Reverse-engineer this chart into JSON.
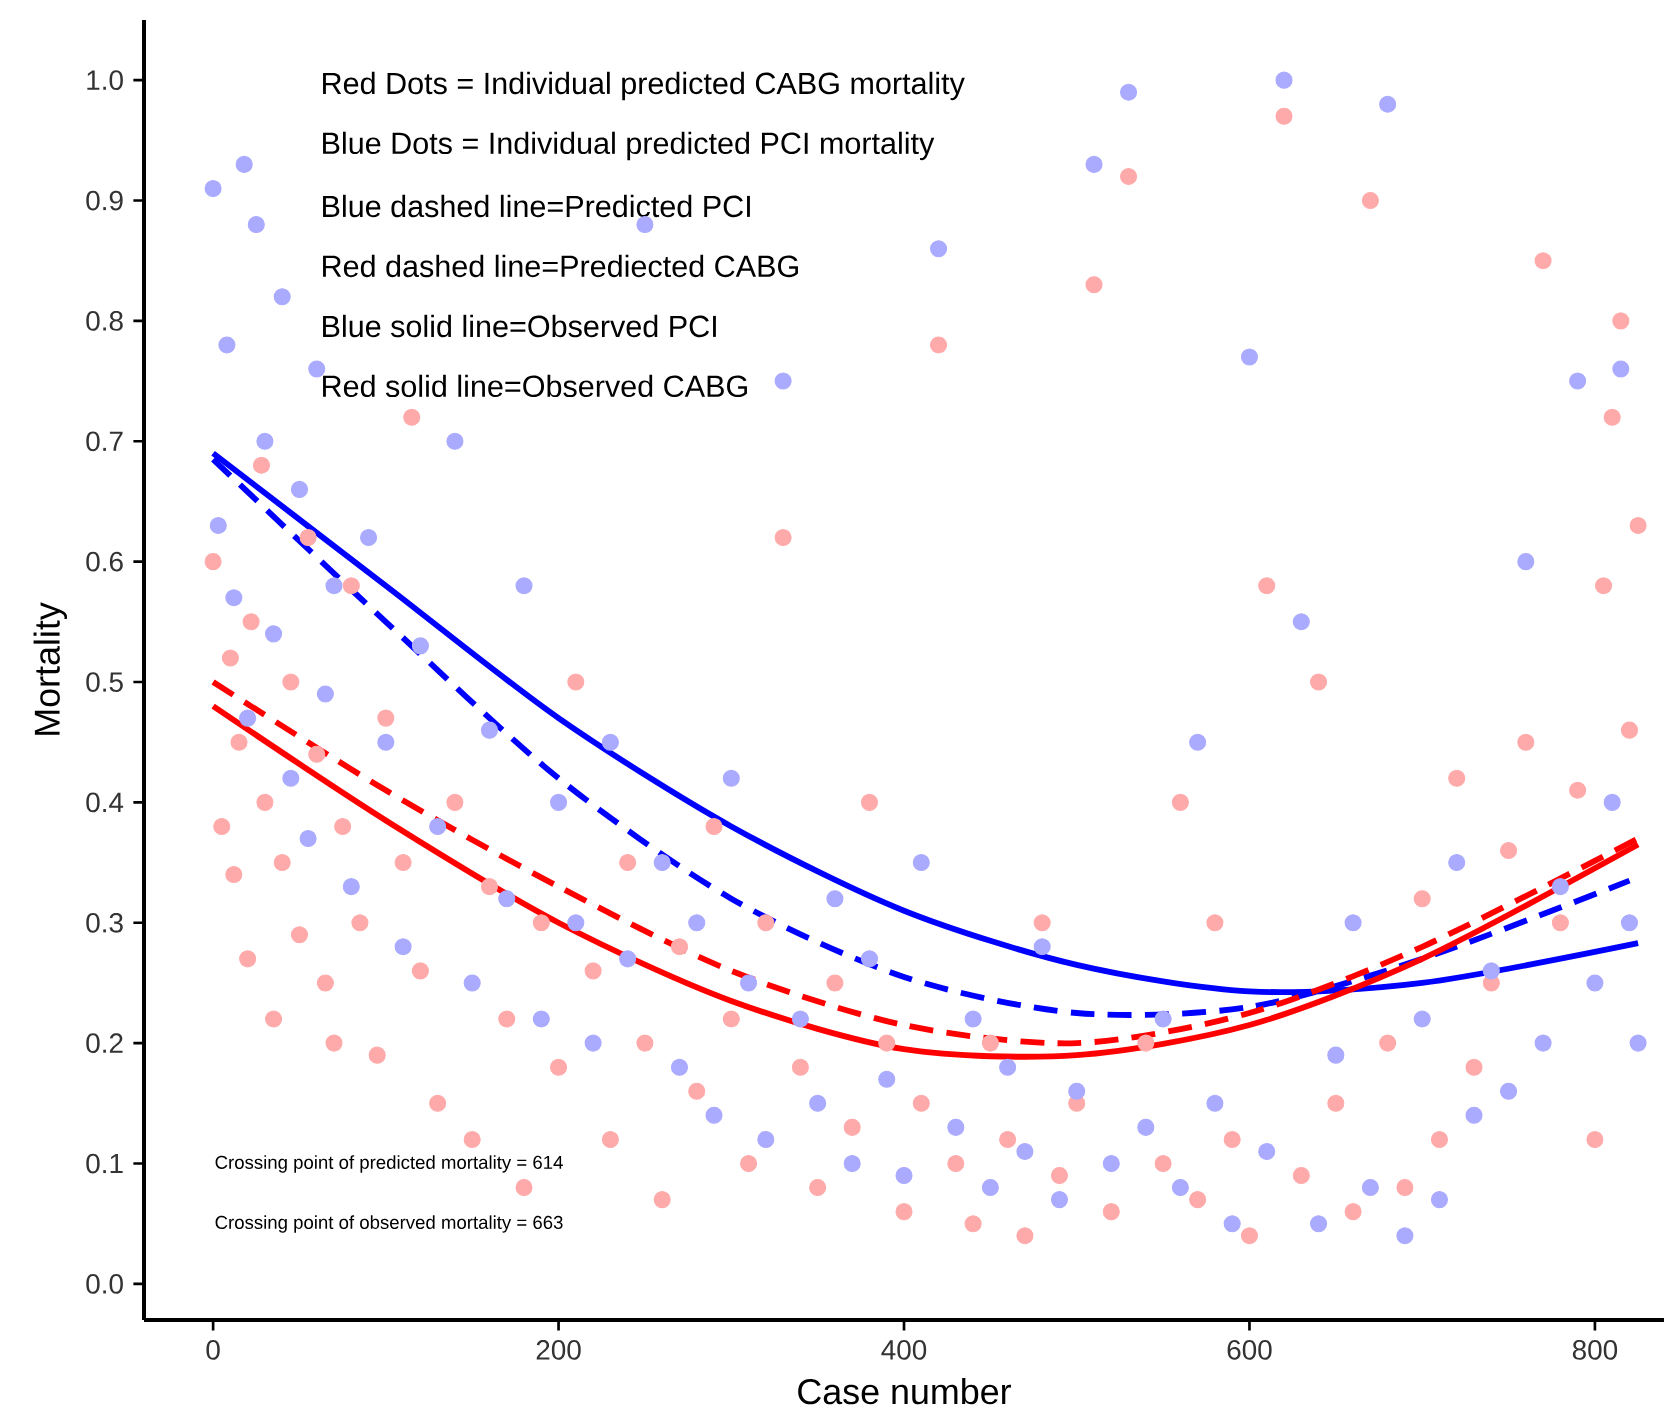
{
  "chart_data": {
    "type": "scatter",
    "xlabel": "Case number",
    "ylabel": "Mortality",
    "xlim": [
      -40,
      840
    ],
    "ylim": [
      -0.03,
      1.05
    ],
    "xticks": [
      0,
      200,
      400,
      600,
      800
    ],
    "yticks": [
      {
        "value": 0,
        "label": "0.0"
      },
      {
        "value": 0.1,
        "label": "0.1"
      },
      {
        "value": 0.2,
        "label": "0.2"
      },
      {
        "value": 0.3,
        "label": "0.3"
      },
      {
        "value": 0.4,
        "label": "0.4"
      },
      {
        "value": 0.5,
        "label": "0.5"
      },
      {
        "value": 0.6,
        "label": "0.6"
      },
      {
        "value": 0.7,
        "label": "0.7"
      },
      {
        "value": 0.8,
        "label": "0.8"
      },
      {
        "value": 0.9,
        "label": "0.9"
      },
      {
        "value": 1.0,
        "label": "1.0"
      }
    ],
    "grid": false,
    "annotations": [
      "Red Dots = Individual predicted CABG mortality",
      "Blue Dots = Individual predicted PCI mortality",
      "Blue dashed line=Predicted PCI",
      "Red dashed line=Prediected CABG",
      "Blue solid line=Observed PCI",
      "Red solid line=Observed CABG",
      "Crossing point of predicted mortality = 614",
      "Crossing point of observed mortality = 663"
    ],
    "series": [
      {
        "marker": "circle",
        "color": "#ffaaaa",
        "x": [
          0,
          5,
          10,
          12,
          15,
          20,
          22,
          28,
          30,
          35,
          40,
          45,
          50,
          55,
          60,
          65,
          70,
          75,
          80,
          85,
          95,
          100,
          110,
          115,
          120,
          130,
          140,
          150,
          160,
          170,
          180,
          190,
          200,
          210,
          220,
          230,
          240,
          250,
          260,
          270,
          280,
          290,
          300,
          310,
          320,
          330,
          340,
          350,
          360,
          370,
          380,
          390,
          400,
          410,
          420,
          430,
          440,
          450,
          460,
          470,
          480,
          490,
          500,
          510,
          520,
          530,
          540,
          550,
          560,
          570,
          580,
          590,
          600,
          610,
          620,
          630,
          640,
          650,
          660,
          670,
          680,
          690,
          700,
          710,
          720,
          730,
          740,
          750,
          760,
          770,
          780,
          790,
          800,
          805,
          810,
          815,
          820,
          825
        ],
        "values": [
          0.6,
          0.38,
          0.52,
          0.34,
          0.45,
          0.27,
          0.55,
          0.68,
          0.4,
          0.22,
          0.35,
          0.5,
          0.29,
          0.62,
          0.44,
          0.25,
          0.2,
          0.38,
          0.58,
          0.3,
          0.19,
          0.47,
          0.35,
          0.72,
          0.26,
          0.15,
          0.4,
          0.12,
          0.33,
          0.22,
          0.08,
          0.3,
          0.18,
          0.5,
          0.26,
          0.12,
          0.35,
          0.2,
          0.07,
          0.28,
          0.16,
          0.38,
          0.22,
          0.1,
          0.3,
          0.62,
          0.18,
          0.08,
          0.25,
          0.13,
          0.4,
          0.2,
          0.06,
          0.15,
          0.78,
          0.1,
          0.05,
          0.2,
          0.12,
          0.04,
          0.3,
          0.09,
          0.15,
          0.83,
          0.06,
          0.92,
          0.2,
          0.1,
          0.4,
          0.07,
          0.3,
          0.12,
          0.04,
          0.58,
          0.97,
          0.09,
          0.5,
          0.15,
          0.06,
          0.9,
          0.2,
          0.08,
          0.32,
          0.12,
          0.42,
          0.18,
          0.25,
          0.36,
          0.45,
          0.85,
          0.3,
          0.41,
          0.12,
          0.58,
          0.72,
          0.8,
          0.46,
          0.63
        ]
      },
      {
        "marker": "circle",
        "color": "#aaaaff",
        "x": [
          0,
          3,
          8,
          12,
          18,
          20,
          25,
          30,
          35,
          40,
          45,
          50,
          55,
          60,
          65,
          70,
          80,
          90,
          100,
          110,
          120,
          130,
          140,
          150,
          160,
          170,
          180,
          190,
          200,
          210,
          220,
          230,
          240,
          250,
          260,
          270,
          280,
          290,
          300,
          310,
          320,
          330,
          340,
          350,
          360,
          370,
          380,
          390,
          400,
          410,
          420,
          430,
          440,
          450,
          460,
          470,
          480,
          490,
          500,
          510,
          520,
          530,
          540,
          550,
          560,
          570,
          580,
          590,
          600,
          610,
          620,
          630,
          640,
          650,
          660,
          670,
          680,
          690,
          700,
          710,
          720,
          730,
          740,
          750,
          760,
          770,
          780,
          790,
          800,
          810,
          815,
          820,
          825
        ],
        "values": [
          0.91,
          0.63,
          0.78,
          0.57,
          0.93,
          0.47,
          0.88,
          0.7,
          0.54,
          0.82,
          0.42,
          0.66,
          0.37,
          0.76,
          0.49,
          0.58,
          0.33,
          0.62,
          0.45,
          0.28,
          0.53,
          0.38,
          0.7,
          0.25,
          0.46,
          0.32,
          0.58,
          0.22,
          0.4,
          0.3,
          0.2,
          0.45,
          0.27,
          0.88,
          0.35,
          0.18,
          0.3,
          0.14,
          0.42,
          0.25,
          0.12,
          0.75,
          0.22,
          0.15,
          0.32,
          0.1,
          0.27,
          0.17,
          0.09,
          0.35,
          0.86,
          0.13,
          0.22,
          0.08,
          0.18,
          0.11,
          0.28,
          0.07,
          0.16,
          0.93,
          0.1,
          0.99,
          0.13,
          0.22,
          0.08,
          0.45,
          0.15,
          0.05,
          0.77,
          0.11,
          1.0,
          0.55,
          0.05,
          0.19,
          0.3,
          0.08,
          0.98,
          0.04,
          0.22,
          0.07,
          0.35,
          0.14,
          0.26,
          0.16,
          0.6,
          0.2,
          0.33,
          0.75,
          0.25,
          0.4,
          0.76,
          0.3,
          0.2
        ]
      },
      {
        "type": "line",
        "marker": "none",
        "line_style": "solid",
        "color": "#0000ff",
        "x": [
          0,
          100,
          200,
          300,
          400,
          500,
          600,
          700,
          825
        ],
        "values": [
          0.69,
          0.58,
          0.47,
          0.38,
          0.31,
          0.265,
          0.243,
          0.25,
          0.283
        ]
      },
      {
        "type": "line",
        "marker": "none",
        "line_style": "dashed",
        "color": "#0000ff",
        "x": [
          0,
          100,
          200,
          300,
          400,
          500,
          600,
          700,
          820
        ],
        "values": [
          0.685,
          0.55,
          0.42,
          0.32,
          0.255,
          0.225,
          0.23,
          0.27,
          0.335
        ]
      },
      {
        "type": "line",
        "marker": "none",
        "line_style": "dashed",
        "color": "#ff0000",
        "x": [
          0,
          100,
          200,
          300,
          400,
          500,
          600,
          700,
          825
        ],
        "values": [
          0.5,
          0.41,
          0.33,
          0.26,
          0.215,
          0.2,
          0.225,
          0.28,
          0.37
        ]
      },
      {
        "type": "line",
        "marker": "none",
        "line_style": "solid",
        "color": "#ff0000",
        "x": [
          0,
          100,
          200,
          300,
          400,
          500,
          600,
          700,
          825
        ],
        "values": [
          0.48,
          0.385,
          0.3,
          0.235,
          0.195,
          0.19,
          0.215,
          0.27,
          0.365
        ]
      }
    ]
  }
}
